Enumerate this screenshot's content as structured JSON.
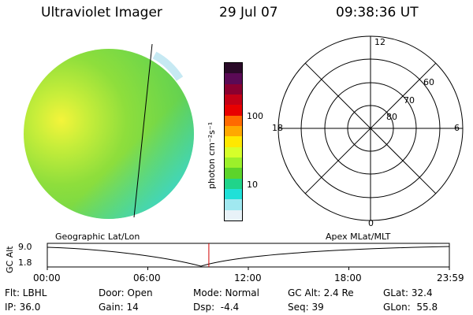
{
  "header": {
    "instrument": "Ultraviolet Imager",
    "date": "29 Jul 07",
    "time": "09:38:36 UT"
  },
  "colorbar": {
    "label": "photon cm⁻²s⁻¹",
    "ticks": [
      "100",
      "10"
    ],
    "colors": [
      "#2a0a28",
      "#5a0a55",
      "#8a0030",
      "#c40016",
      "#e80000",
      "#ff6a00",
      "#ffa800",
      "#ffe800",
      "#d6ff2a",
      "#9cf02a",
      "#5cd42a",
      "#20d48a",
      "#20e0d8",
      "#a0e8f0",
      "#e8f2f8"
    ]
  },
  "polar_grid": {
    "mlt_labels": [
      "12",
      "18",
      "6",
      "0"
    ],
    "lat_labels": [
      "60",
      "70",
      "80"
    ]
  },
  "orbit_panel": {
    "left_label": "Geographic Lat/Lon",
    "right_label": "Apex  MLat/MLT",
    "yaxis_label": "GC Alt",
    "y_ticks": [
      "9.0",
      "1.8"
    ],
    "x_ticks": [
      "00:00",
      "06:00",
      "12:00",
      "18:00",
      "23:59"
    ],
    "marker_time_hours": 9.643
  },
  "status": {
    "row1": [
      {
        "label": "Flt: LBHL"
      },
      {
        "label": "Door: Open"
      },
      {
        "label": "Mode: Normal"
      },
      {
        "label": "GC Alt: 2.4 Re"
      },
      {
        "label": "GLat: 32.4"
      }
    ],
    "row2": [
      {
        "label": "IP: 36.0"
      },
      {
        "label": "Gain: 14"
      },
      {
        "label": "Dsp:  -4.4"
      },
      {
        "label": "Seq: 39"
      },
      {
        "label": "GLon:  55.8"
      }
    ]
  }
}
